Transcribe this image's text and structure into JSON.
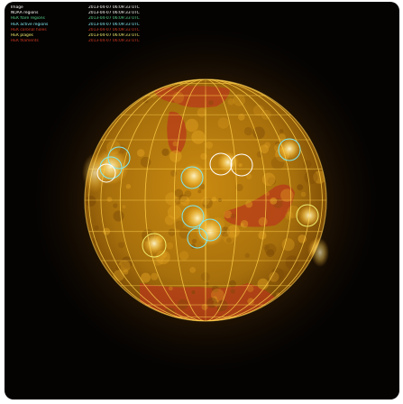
{
  "legend": [
    {
      "label": "Image",
      "time": "2013-04-07 06:09:33 UTC",
      "color": "#ffffff"
    },
    {
      "label": "NOAA regions",
      "time": "2013-04-07 06:09:33 UTC",
      "color": "#ffffff"
    },
    {
      "label": "HEK flare regions",
      "time": "2013-04-07 06:09:33 UTC",
      "color": "#57d38c"
    },
    {
      "label": "HEK active regions",
      "time": "2013-04-07 06:09:33 UTC",
      "color": "#7fe8f0"
    },
    {
      "label": "HEK coronal holes",
      "time": "2013-04-07 06:09:33 UTC",
      "color": "#d23a22"
    },
    {
      "label": "HEK plages",
      "time": "2013-04-07 06:09:33 UTC",
      "color": "#f3ef6e"
    },
    {
      "label": "HEK filaments",
      "time": "2013-04-07 06:09:33 UTC",
      "color": "#d23a22"
    }
  ],
  "colors": {
    "background": "#050302",
    "sun_core": "#c88b10",
    "sun_limb": "#7a4a06",
    "grid": "#ffd24a",
    "coronal_hole": "#b8391a",
    "active_region_marker": "#7fe8f0",
    "noaa_marker": "#ffffff",
    "plage_marker": "#f3ef6e"
  }
}
